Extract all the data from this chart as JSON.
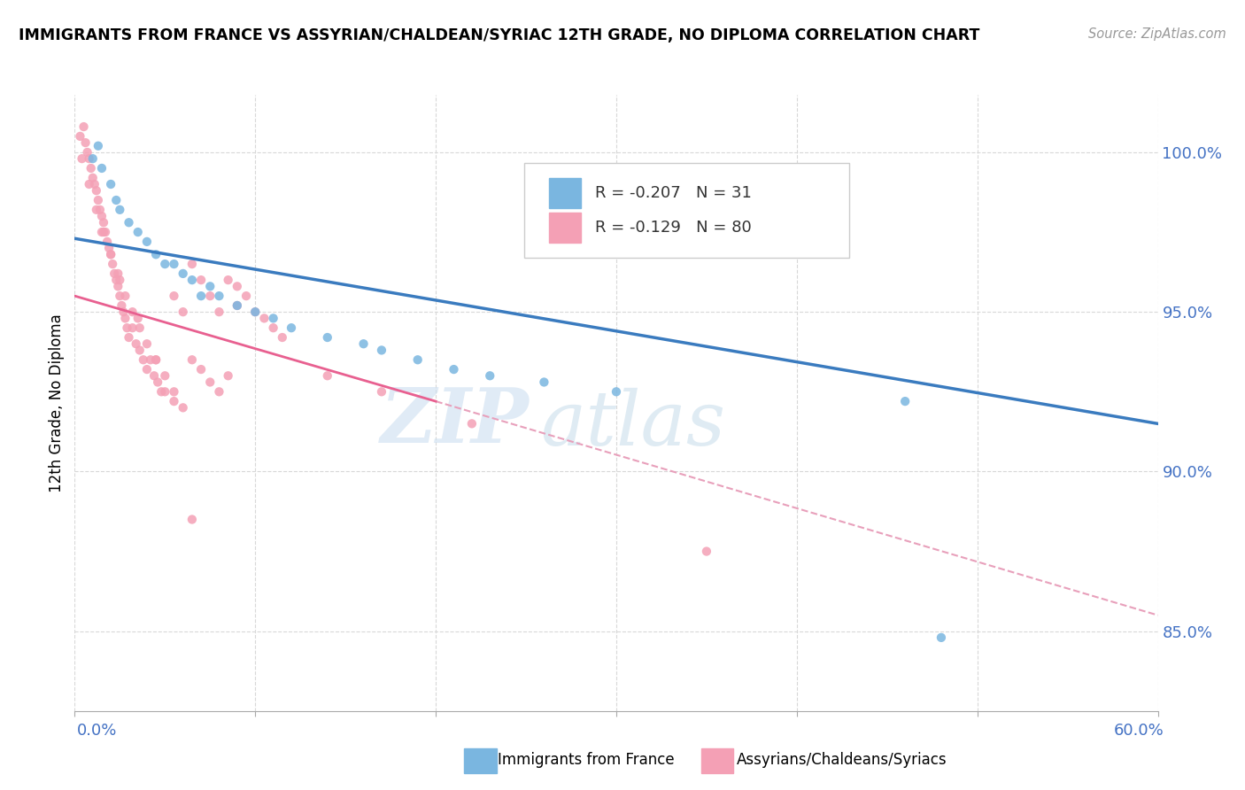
{
  "title": "IMMIGRANTS FROM FRANCE VS ASSYRIAN/CHALDEAN/SYRIAC 12TH GRADE, NO DIPLOMA CORRELATION CHART",
  "source": "Source: ZipAtlas.com",
  "ylabel": "12th Grade, No Diploma",
  "r_blue": -0.207,
  "n_blue": 31,
  "r_pink": -0.129,
  "n_pink": 80,
  "legend_blue": "Immigrants from France",
  "legend_pink": "Assyrians/Chaldeans/Syriacs",
  "blue_color": "#7ab6e0",
  "pink_color": "#f4a0b5",
  "blue_line_color": "#3a7bbf",
  "pink_line_color": "#e86090",
  "dashed_line_color": "#e8a0bb",
  "watermark_zip": "ZIP",
  "watermark_atlas": "atlas",
  "xlim": [
    0.0,
    60.0
  ],
  "ylim": [
    82.5,
    101.8
  ],
  "yticks": [
    85.0,
    90.0,
    95.0,
    100.0
  ],
  "blue_trend_x0": 0.0,
  "blue_trend_y0": 97.3,
  "blue_trend_x1": 60.0,
  "blue_trend_y1": 91.5,
  "pink_trend_x0": 0.0,
  "pink_trend_y0": 95.5,
  "pink_trend_x1": 20.0,
  "pink_trend_y1": 92.2,
  "pink_dash_x0": 20.0,
  "pink_dash_y0": 92.2,
  "pink_dash_x1": 60.0,
  "pink_dash_y1": 85.5,
  "blue_scatter_x": [
    1.0,
    1.3,
    1.5,
    2.0,
    2.3,
    2.5,
    3.0,
    3.5,
    4.0,
    4.5,
    5.0,
    5.5,
    6.0,
    6.5,
    7.0,
    7.5,
    8.0,
    9.0,
    10.0,
    11.0,
    12.0,
    14.0,
    16.0,
    17.0,
    19.0,
    21.0,
    23.0,
    26.0,
    30.0,
    46.0,
    48.0
  ],
  "blue_scatter_y": [
    99.8,
    100.2,
    99.5,
    99.0,
    98.5,
    98.2,
    97.8,
    97.5,
    97.2,
    96.8,
    96.5,
    96.5,
    96.2,
    96.0,
    95.5,
    95.8,
    95.5,
    95.2,
    95.0,
    94.8,
    94.5,
    94.2,
    94.0,
    93.8,
    93.5,
    93.2,
    93.0,
    92.8,
    92.5,
    92.2,
    84.8
  ],
  "pink_scatter_x": [
    0.3,
    0.5,
    0.6,
    0.7,
    0.8,
    0.9,
    1.0,
    1.1,
    1.2,
    1.3,
    1.4,
    1.5,
    1.6,
    1.7,
    1.8,
    1.9,
    2.0,
    2.1,
    2.2,
    2.3,
    2.4,
    2.5,
    2.6,
    2.7,
    2.8,
    2.9,
    3.0,
    3.2,
    3.4,
    3.6,
    3.8,
    4.0,
    4.2,
    4.4,
    4.6,
    4.8,
    5.0,
    5.5,
    6.0,
    6.5,
    7.0,
    7.5,
    8.0,
    8.5,
    9.0,
    9.5,
    10.0,
    10.5,
    11.0,
    11.5,
    0.4,
    0.8,
    1.2,
    1.6,
    2.0,
    2.4,
    2.8,
    3.2,
    3.6,
    4.0,
    4.5,
    5.0,
    5.5,
    6.0,
    6.5,
    7.0,
    7.5,
    8.0,
    8.5,
    9.0,
    1.5,
    2.5,
    3.5,
    4.5,
    5.5,
    6.5,
    14.0,
    17.0,
    22.0,
    35.0
  ],
  "pink_scatter_y": [
    100.5,
    100.8,
    100.3,
    100.0,
    99.8,
    99.5,
    99.2,
    99.0,
    98.8,
    98.5,
    98.2,
    98.0,
    97.8,
    97.5,
    97.2,
    97.0,
    96.8,
    96.5,
    96.2,
    96.0,
    95.8,
    95.5,
    95.2,
    95.0,
    94.8,
    94.5,
    94.2,
    94.5,
    94.0,
    93.8,
    93.5,
    93.2,
    93.5,
    93.0,
    92.8,
    92.5,
    92.5,
    95.5,
    95.0,
    93.5,
    93.2,
    92.8,
    92.5,
    96.0,
    95.8,
    95.5,
    95.0,
    94.8,
    94.5,
    94.2,
    99.8,
    99.0,
    98.2,
    97.5,
    96.8,
    96.2,
    95.5,
    95.0,
    94.5,
    94.0,
    93.5,
    93.0,
    92.5,
    92.0,
    96.5,
    96.0,
    95.5,
    95.0,
    93.0,
    95.2,
    97.5,
    96.0,
    94.8,
    93.5,
    92.2,
    88.5,
    93.0,
    92.5,
    91.5,
    87.5
  ]
}
